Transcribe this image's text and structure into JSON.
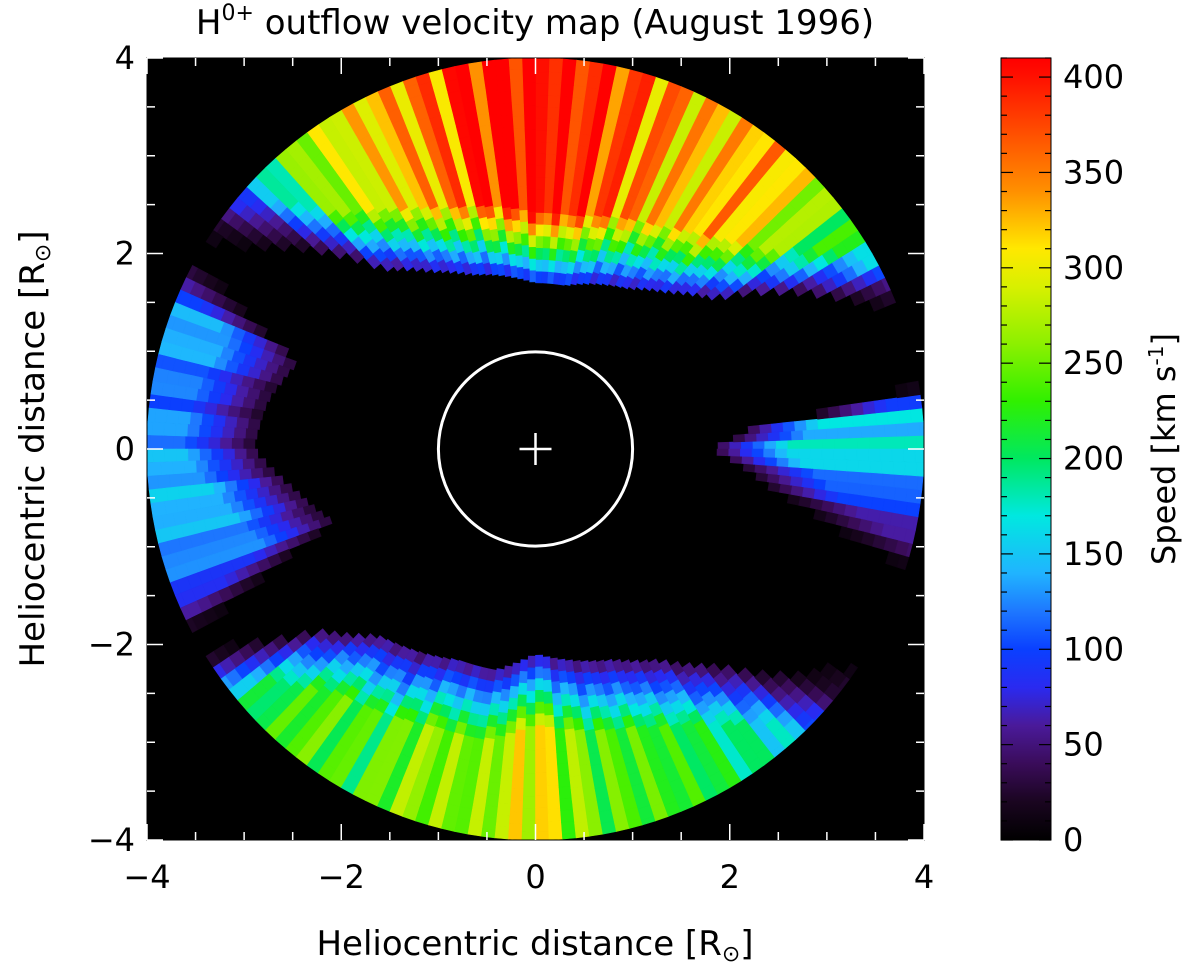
{
  "chart_data": {
    "type": "heatmap",
    "title": {
      "prefix": "H",
      "superscript": "0+",
      "suffix": " outflow velocity map (August 1996)"
    },
    "xlabel": "Heliocentric distance [R",
    "ylabel": "Heliocentric distance [R",
    "axis_unit_symbol": "⊙",
    "axis_label_close": "]",
    "xlim": [
      -4,
      4
    ],
    "ylim": [
      -4,
      4
    ],
    "x_ticks": [
      -4,
      -2,
      0,
      2,
      4
    ],
    "y_ticks": [
      -4,
      -2,
      0,
      2,
      4
    ],
    "x_tick_labels": [
      "−4",
      "−2",
      "0",
      "2",
      "4"
    ],
    "y_tick_labels": [
      "−4",
      "−2",
      "0",
      "2",
      "4"
    ],
    "background_color": "#000000",
    "outer_radius": 4,
    "occulter_radius": 1,
    "occulter_color": "#ffffff",
    "sun_center_marker": "plus",
    "colorbar": {
      "label": "Speed [km s",
      "label_superscript": "-1",
      "label_close": "]",
      "range": [
        0,
        410
      ],
      "ticks": [
        0,
        50,
        100,
        150,
        200,
        250,
        300,
        350,
        400
      ],
      "tick_labels": [
        "0",
        "50",
        "100",
        "150",
        "200",
        "250",
        "300",
        "350",
        "400"
      ],
      "colormap": "rainbow",
      "colormap_stops": [
        [
          0,
          "#000000"
        ],
        [
          20,
          "#1a0520"
        ],
        [
          40,
          "#3a0c5a"
        ],
        [
          60,
          "#4a1a9a"
        ],
        [
          80,
          "#2a2af0"
        ],
        [
          100,
          "#0a40ff"
        ],
        [
          120,
          "#1e78ff"
        ],
        [
          140,
          "#20b4ff"
        ],
        [
          170,
          "#00e8e0"
        ],
        [
          200,
          "#00e860"
        ],
        [
          230,
          "#30f000"
        ],
        [
          260,
          "#8cf000"
        ],
        [
          290,
          "#d8f000"
        ],
        [
          310,
          "#ffe800"
        ],
        [
          340,
          "#ff9000"
        ],
        [
          370,
          "#ff5000"
        ],
        [
          400,
          "#ff1000"
        ],
        [
          410,
          "#ff0000"
        ]
      ]
    },
    "angular_profile": {
      "description_units": "position angle in degrees (0 = +x axis, counter-clockwise) vs speed in km/s at r = 3.5 Rsun; inner edge radius in Rsun",
      "points": [
        {
          "pa": 0,
          "speed": 165,
          "r_inner": 1.8
        },
        {
          "pa": 5,
          "speed": 150,
          "r_inner": 2.2
        },
        {
          "pa": 10,
          "speed": 0,
          "r_inner": 4.0
        },
        {
          "pa": 20,
          "speed": 0,
          "r_inner": 4.0
        },
        {
          "pa": 30,
          "speed": 180,
          "r_inner": 3.2
        },
        {
          "pa": 40,
          "speed": 250,
          "r_inner": 2.4
        },
        {
          "pa": 50,
          "speed": 320,
          "r_inner": 2.1
        },
        {
          "pa": 60,
          "speed": 300,
          "r_inner": 1.9
        },
        {
          "pa": 70,
          "speed": 340,
          "r_inner": 1.8
        },
        {
          "pa": 80,
          "speed": 370,
          "r_inner": 1.7
        },
        {
          "pa": 90,
          "speed": 395,
          "r_inner": 1.7
        },
        {
          "pa": 100,
          "speed": 380,
          "r_inner": 1.8
        },
        {
          "pa": 110,
          "speed": 330,
          "r_inner": 1.9
        },
        {
          "pa": 120,
          "speed": 290,
          "r_inner": 2.1
        },
        {
          "pa": 130,
          "speed": 250,
          "r_inner": 2.4
        },
        {
          "pa": 140,
          "speed": 90,
          "r_inner": 3.2
        },
        {
          "pa": 150,
          "speed": 0,
          "r_inner": 4.0
        },
        {
          "pa": 160,
          "speed": 140,
          "r_inner": 2.6
        },
        {
          "pa": 170,
          "speed": 110,
          "r_inner": 2.8
        },
        {
          "pa": 180,
          "speed": 130,
          "r_inner": 2.9
        },
        {
          "pa": 190,
          "speed": 140,
          "r_inner": 2.5
        },
        {
          "pa": 200,
          "speed": 110,
          "r_inner": 2.2
        },
        {
          "pa": 210,
          "speed": 0,
          "r_inner": 4.0
        },
        {
          "pa": 220,
          "speed": 180,
          "r_inner": 2.9
        },
        {
          "pa": 230,
          "speed": 230,
          "r_inner": 2.5
        },
        {
          "pa": 240,
          "speed": 220,
          "r_inner": 2.4
        },
        {
          "pa": 250,
          "speed": 250,
          "r_inner": 2.3
        },
        {
          "pa": 260,
          "speed": 240,
          "r_inner": 2.3
        },
        {
          "pa": 270,
          "speed": 300,
          "r_inner": 2.1
        },
        {
          "pa": 280,
          "speed": 230,
          "r_inner": 2.2
        },
        {
          "pa": 290,
          "speed": 220,
          "r_inner": 2.3
        },
        {
          "pa": 300,
          "speed": 200,
          "r_inner": 2.5
        },
        {
          "pa": 310,
          "speed": 170,
          "r_inner": 2.9
        },
        {
          "pa": 320,
          "speed": 60,
          "r_inner": 3.6
        },
        {
          "pa": 330,
          "speed": 0,
          "r_inner": 4.0
        },
        {
          "pa": 340,
          "speed": 0,
          "r_inner": 4.0
        },
        {
          "pa": 350,
          "speed": 80,
          "r_inner": 2.5
        },
        {
          "pa": 360,
          "speed": 165,
          "r_inner": 1.8
        }
      ]
    },
    "grid": false,
    "legend": "colorbar-right"
  }
}
